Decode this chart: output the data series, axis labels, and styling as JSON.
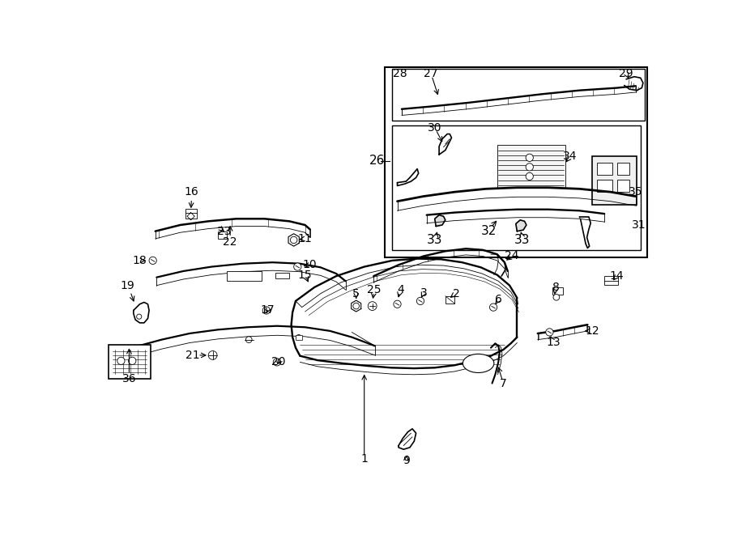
{
  "bg": "#ffffff",
  "lc": "#000000",
  "fig_w": 9.0,
  "fig_h": 6.61,
  "dpi": 100,
  "lw": 1.2,
  "lw2": 0.6,
  "fs": 10,
  "fs2": 11
}
